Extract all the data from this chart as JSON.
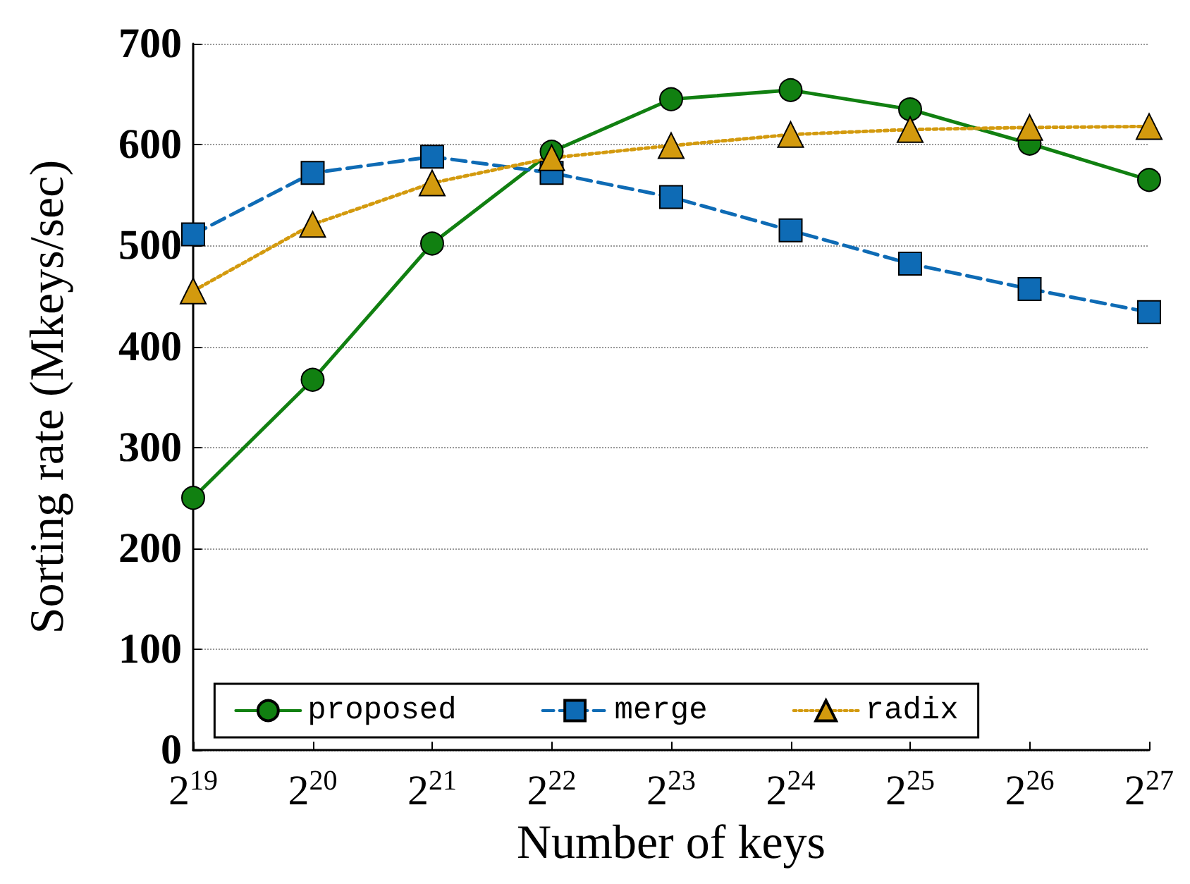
{
  "chart_data": {
    "type": "line",
    "xlabel": "Number of keys",
    "ylabel": "Sorting rate (Mkeys/sec)",
    "categories": [
      "2$^{19}$",
      "2$^{20}$",
      "2$^{21}$",
      "2$^{22}$",
      "2$^{23}$",
      "2$^{24}$",
      "2$^{25}$",
      "2$^{26}$",
      "2$^{27}$"
    ],
    "series": [
      {
        "name": "proposed",
        "color": "#118011",
        "marker": "circle",
        "line_style": "solid",
        "values": [
          250,
          367,
          502,
          593,
          645,
          654,
          635,
          601,
          565
        ]
      },
      {
        "name": "merge",
        "color": "#0e6bb5",
        "marker": "square",
        "line_style": "dashed",
        "values": [
          511,
          572,
          588,
          572,
          548,
          515,
          482,
          457,
          434
        ]
      },
      {
        "name": "radix",
        "color": "#d39a0e",
        "marker": "triangle",
        "line_style": "dotted",
        "values": [
          455,
          521,
          562,
          587,
          599,
          610,
          615,
          617,
          618
        ]
      }
    ],
    "ylim": [
      0,
      700
    ],
    "yticks": [
      0,
      100,
      200,
      300,
      400,
      500,
      600,
      700
    ],
    "grid": "y",
    "legend": "bottom"
  }
}
